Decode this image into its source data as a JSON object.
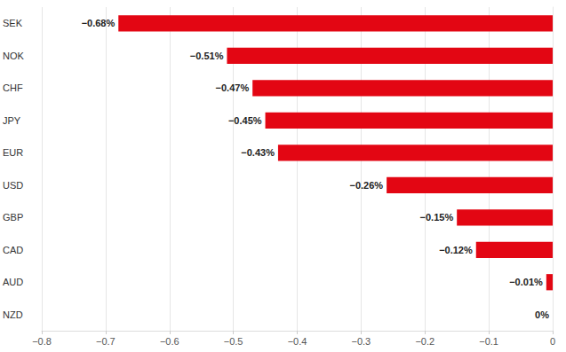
{
  "chart_data": {
    "type": "bar",
    "orientation": "horizontal",
    "categories": [
      "SEK",
      "NOK",
      "CHF",
      "JPY",
      "EUR",
      "USD",
      "GBP",
      "CAD",
      "AUD",
      "NZD"
    ],
    "values": [
      -0.68,
      -0.51,
      -0.47,
      -0.45,
      -0.43,
      -0.26,
      -0.15,
      -0.12,
      -0.01,
      0
    ],
    "value_labels": [
      "−0.68%",
      "−0.51%",
      "−0.47%",
      "−0.45%",
      "−0.43%",
      "−0.26%",
      "−0.15%",
      "−0.12%",
      "−0.01%",
      "0%"
    ],
    "color": "#e30613",
    "xlim": [
      -0.8,
      0
    ],
    "xticks": [
      {
        "value": -0.8,
        "label": "−0.8"
      },
      {
        "value": -0.7,
        "label": "−0.7"
      },
      {
        "value": -0.6,
        "label": "−0.6"
      },
      {
        "value": -0.5,
        "label": "−0.5"
      },
      {
        "value": -0.4,
        "label": "−0.4"
      },
      {
        "value": -0.3,
        "label": "−0.3"
      },
      {
        "value": -0.2,
        "label": "−0.2"
      },
      {
        "value": -0.1,
        "label": "−0.1"
      },
      0
    ],
    "grid": true,
    "data_labels": true
  }
}
